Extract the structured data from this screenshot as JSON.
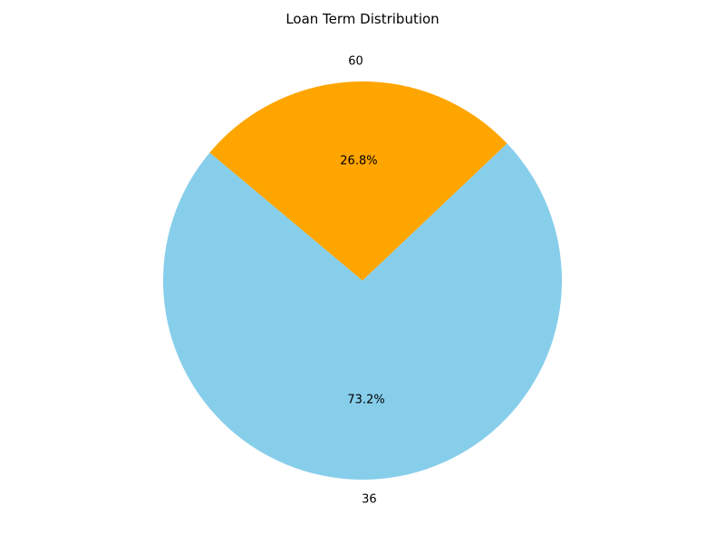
{
  "chart_data": {
    "type": "pie",
    "title": "Loan Term Distribution",
    "categories": [
      "36",
      "60"
    ],
    "values": [
      73.2,
      26.8
    ],
    "value_labels": [
      "73.2%",
      "26.8%"
    ],
    "colors": [
      "#87CEEB",
      "#FFA500"
    ],
    "start_angle_deg": 140,
    "direction": "counterclockwise",
    "legend": "none"
  }
}
